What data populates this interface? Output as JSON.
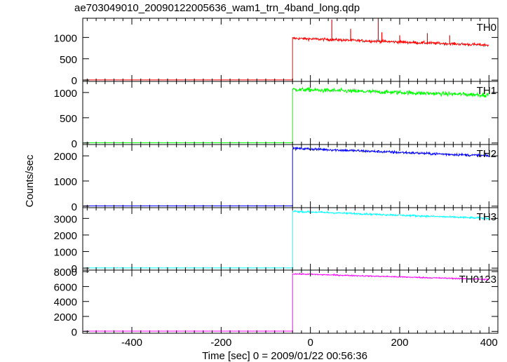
{
  "title": "ae703049010_20090122005636_wam1_trn_4band_long.qdp",
  "colors": {
    "axes": "#000000",
    "background": "#ffffff"
  },
  "chart_data": {
    "type": "line",
    "title": "ae703049010_20090122005636_wam1_trn_4band_long.qdp",
    "xlabel": "Time [sec] 0 = 2009/01/22 00:56:36",
    "ylabel": "Counts/sec",
    "xlim": [
      -510,
      420
    ],
    "xticks": [
      "-400",
      "-200",
      "0",
      "200",
      "400"
    ],
    "xtick_values": [
      -400,
      -200,
      0,
      200,
      400
    ],
    "grid": false,
    "onset_time": -40,
    "panels": [
      {
        "name": "TH0",
        "color": "#ff0000",
        "ylim": [
          -30,
          1450
        ],
        "yticks": [
          "0",
          "500",
          "1000"
        ],
        "ytick_values": [
          0,
          500,
          1000
        ],
        "pre_level": 5,
        "post_start": 980,
        "post_end": 820,
        "noise": 55,
        "spikes": [
          {
            "x": 48,
            "y": 1420
          },
          {
            "x": 90,
            "y": 1200
          },
          {
            "x": 152,
            "y": 1450
          },
          {
            "x": 160,
            "y": 1120
          },
          {
            "x": 200,
            "y": 1050
          },
          {
            "x": 262,
            "y": 1100
          },
          {
            "x": 312,
            "y": 1050
          }
        ]
      },
      {
        "name": "TH1",
        "color": "#00ff00",
        "ylim": [
          -30,
          1220
        ],
        "yticks": [
          "0",
          "500",
          "1000"
        ],
        "ytick_values": [
          0,
          500,
          1000
        ],
        "pre_level": 5,
        "post_start": 1060,
        "post_end": 950,
        "noise": 70,
        "spikes": []
      },
      {
        "name": "TH2",
        "color": "#0000ff",
        "ylim": [
          -60,
          2450
        ],
        "yticks": [
          "0",
          "1000",
          "2000"
        ],
        "ytick_values": [
          0,
          1000,
          2000
        ],
        "pre_level": 10,
        "post_start": 2300,
        "post_end": 2000,
        "noise": 90,
        "spikes": []
      },
      {
        "name": "TH3",
        "color": "#00ffff",
        "ylim": [
          -120,
          3650
        ],
        "yticks": [
          "0",
          "1000",
          "2000",
          "3000"
        ],
        "ytick_values": [
          0,
          1000,
          2000,
          3000
        ],
        "pre_level": 10,
        "post_start": 3430,
        "post_end": 3000,
        "noise": 90,
        "spikes": []
      },
      {
        "name": "TH0123",
        "color": "#ff00ff",
        "ylim": [
          -250,
          8200
        ],
        "yticks": [
          "0",
          "2000",
          "4000",
          "6000",
          "8000"
        ],
        "ytick_values": [
          0,
          2000,
          4000,
          6000,
          8000
        ],
        "pre_level": 30,
        "post_start": 7700,
        "post_end": 6950,
        "noise": 140,
        "spikes": []
      }
    ]
  }
}
